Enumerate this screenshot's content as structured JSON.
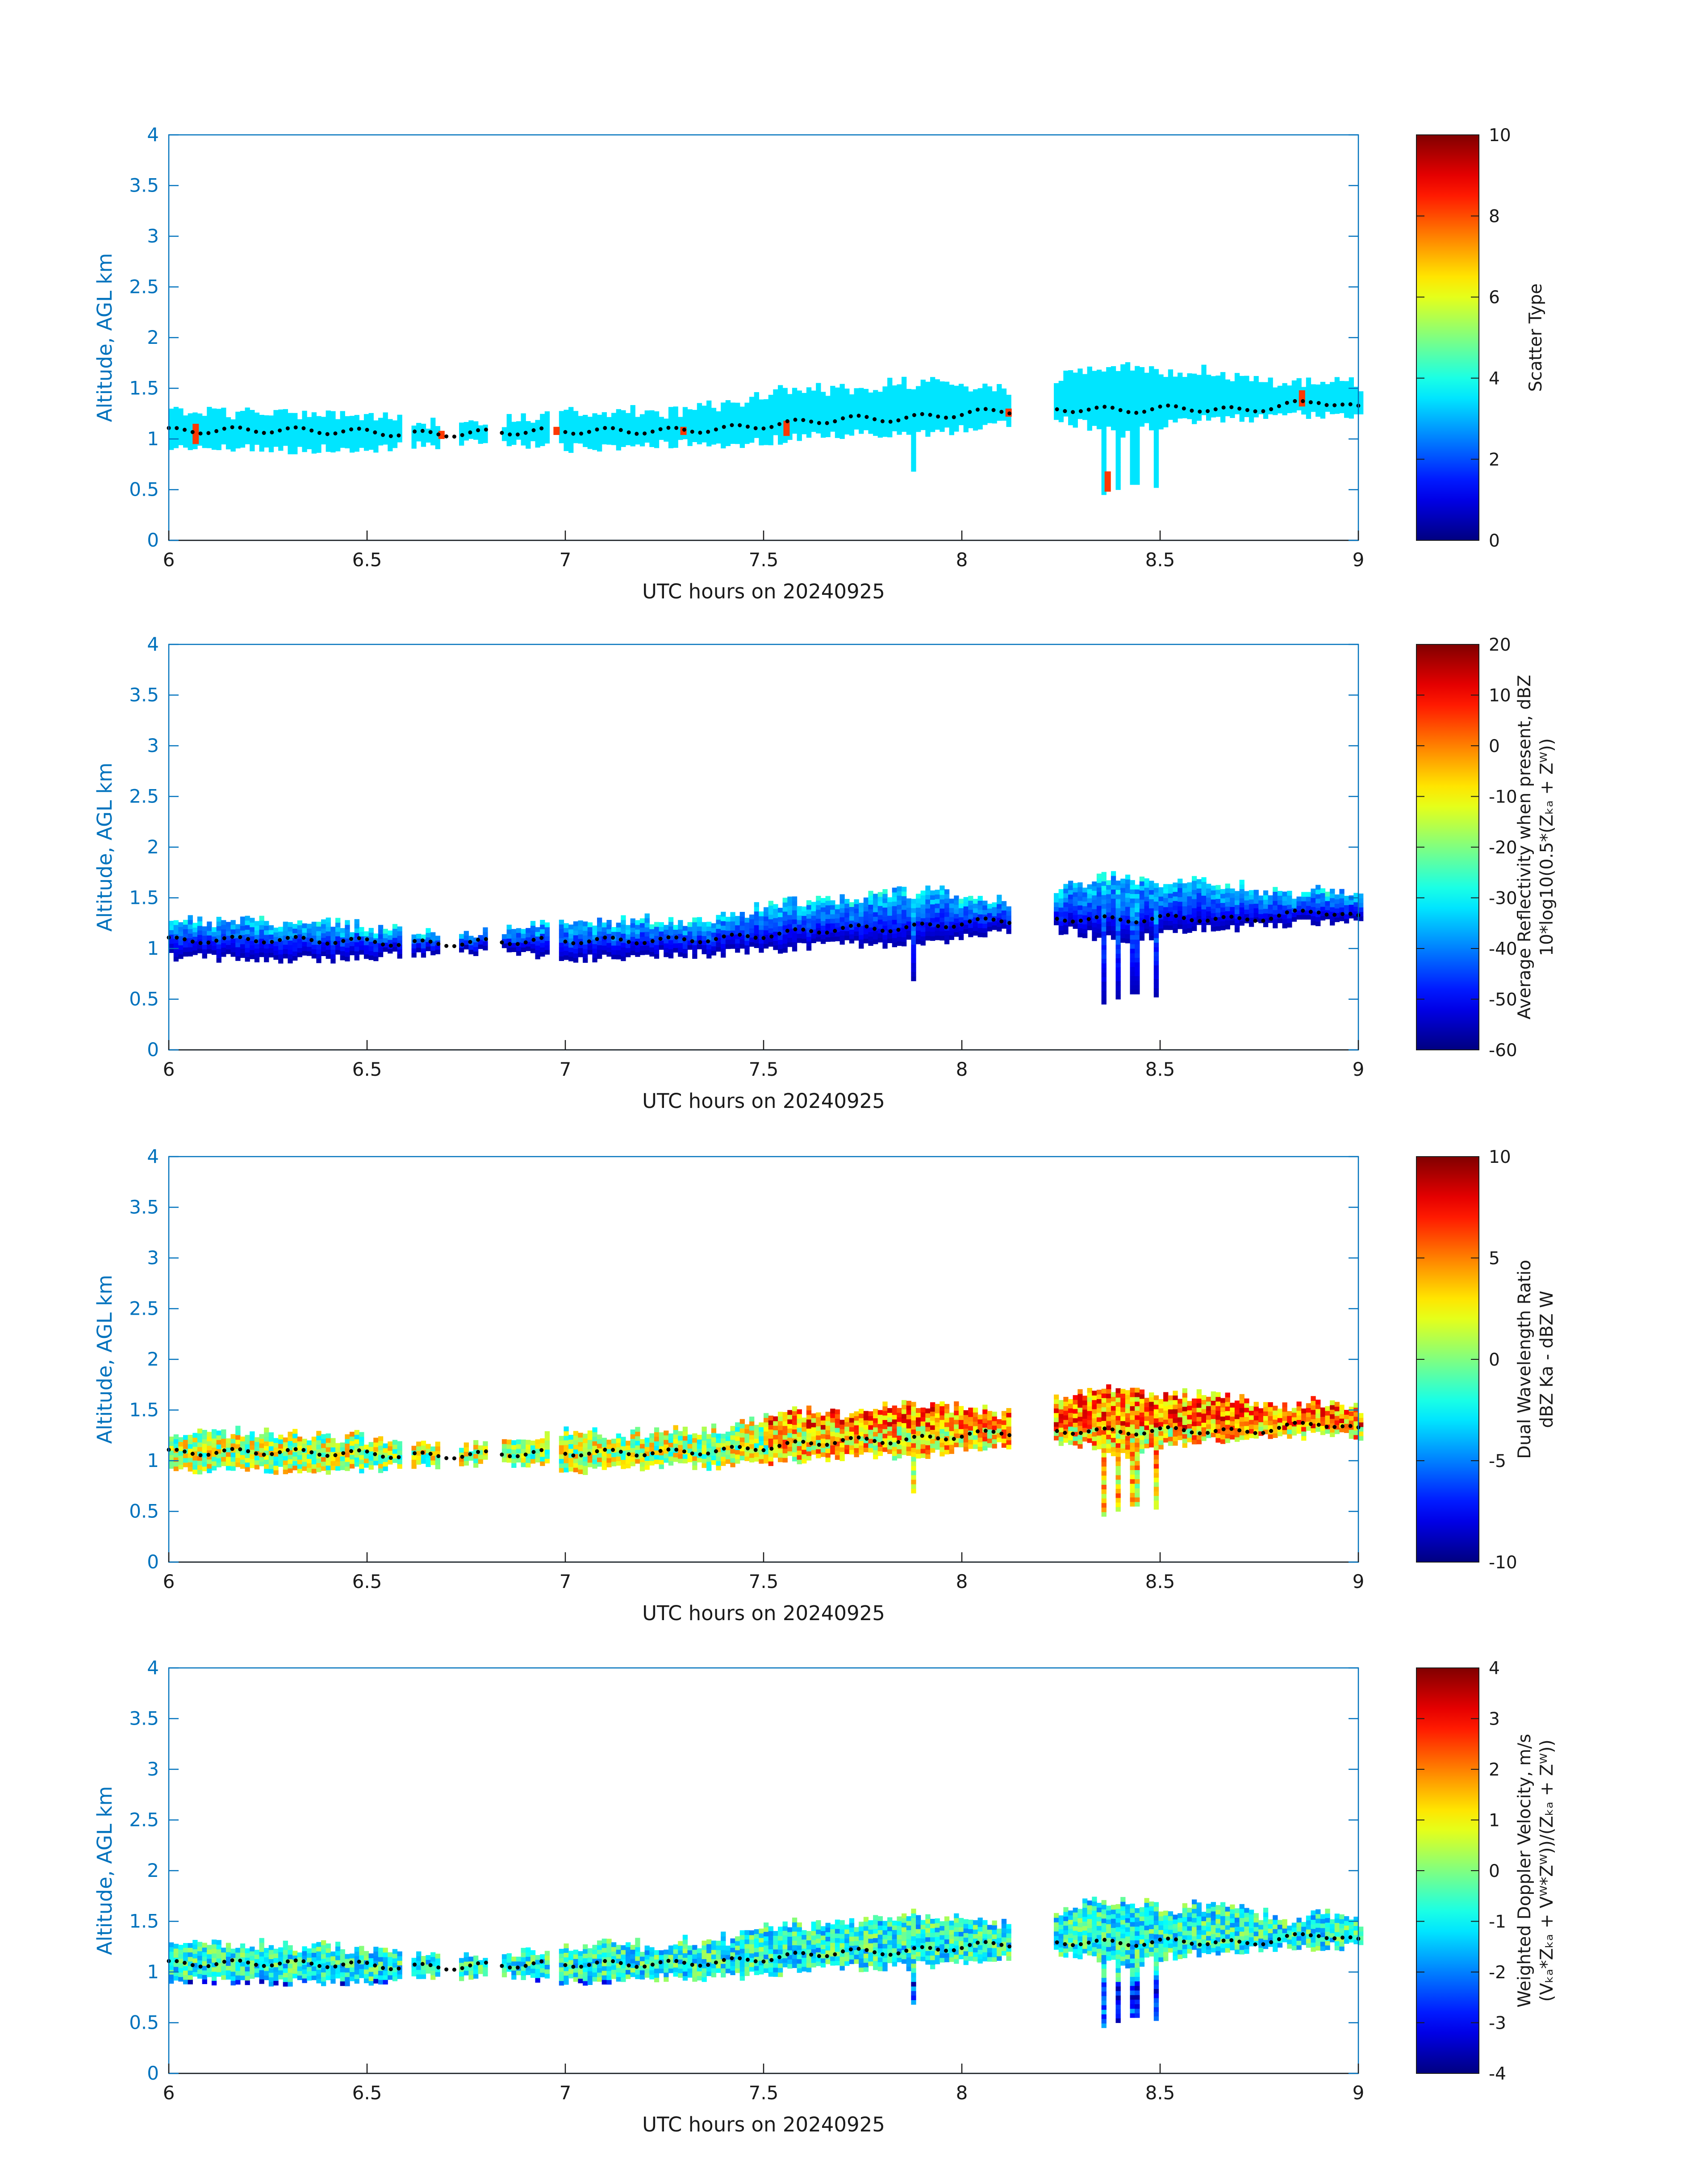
{
  "colors": {
    "axis_left": "#0072bd",
    "text": "#1a1a1a",
    "marker": "#000000",
    "colormap": "jet"
  },
  "chart_data": [
    {
      "type": "heatmap",
      "id": "scatter",
      "xlabel": "UTC hours on 20240925",
      "ylabel": "Altitude, AGL km",
      "xlim": [
        6,
        9
      ],
      "ylim": [
        0,
        4
      ],
      "xticks": [
        "6",
        "6.5",
        "7",
        "7.5",
        "8",
        "8.5",
        "9"
      ],
      "yticks": [
        "0",
        "0.5",
        "1",
        "1.5",
        "2",
        "2.5",
        "3",
        "3.5",
        "4"
      ],
      "colorbar": {
        "label_lines": [
          "Scatter Type"
        ],
        "range": [
          0,
          10
        ],
        "ticks": [
          "0",
          "2",
          "4",
          "6",
          "8",
          "10"
        ]
      },
      "field": "scatter_type",
      "approx_value": 3.5
    },
    {
      "type": "heatmap",
      "id": "reflectivity",
      "xlabel": "UTC hours on 20240925",
      "ylabel": "Altitude, AGL km",
      "xlim": [
        6,
        9
      ],
      "ylim": [
        0,
        4
      ],
      "xticks": [
        "6",
        "6.5",
        "7",
        "7.5",
        "8",
        "8.5",
        "9"
      ],
      "yticks": [
        "0",
        "0.5",
        "1",
        "1.5",
        "2",
        "2.5",
        "3",
        "3.5",
        "4"
      ],
      "colorbar": {
        "label_lines": [
          "Average Reflectivity when present, dBZ",
          "10*log10(0.5*(Zₖₐ + Zᵂ))"
        ],
        "range": [
          -60,
          20
        ],
        "ticks": [
          "-60",
          "-50",
          "-40",
          "-30",
          "-20",
          "-10",
          "0",
          "10",
          "20"
        ]
      },
      "field": "reflectivity_dbz",
      "approx_range": [
        -58,
        -32
      ]
    },
    {
      "type": "heatmap",
      "id": "dwr",
      "xlabel": "UTC hours on 20240925",
      "ylabel": "Altitude, AGL km",
      "xlim": [
        6,
        9
      ],
      "ylim": [
        0,
        4
      ],
      "xticks": [
        "6",
        "6.5",
        "7",
        "7.5",
        "8",
        "8.5",
        "9"
      ],
      "yticks": [
        "0",
        "0.5",
        "1",
        "1.5",
        "2",
        "2.5",
        "3",
        "3.5",
        "4"
      ],
      "colorbar": {
        "label_lines": [
          "Dual Wavelength Ratio",
          "dBZ Ka - dBZ W"
        ],
        "range": [
          -10,
          10
        ],
        "ticks": [
          "-10",
          "-5",
          "0",
          "5",
          "10"
        ]
      },
      "field": "dual_wavelength_ratio_db",
      "approx_range": [
        -8,
        8
      ]
    },
    {
      "type": "heatmap",
      "id": "doppler",
      "xlabel": "UTC hours on 20240925",
      "ylabel": "Altitude, AGL km",
      "xlim": [
        6,
        9
      ],
      "ylim": [
        0,
        4
      ],
      "xticks": [
        "6",
        "6.5",
        "7",
        "7.5",
        "8",
        "8.5",
        "9"
      ],
      "yticks": [
        "0",
        "0.5",
        "1",
        "1.5",
        "2",
        "2.5",
        "3",
        "3.5",
        "4"
      ],
      "colorbar": {
        "label_lines": [
          "Weighted Doppler Velocity, m/s",
          "(Vₖₐ*Zₖₐ + Vᵂ*Zᵂ))/(Zₖₐ + Zᵂ))"
        ],
        "range": [
          -4,
          4
        ],
        "ticks": [
          "-4",
          "-3",
          "-2",
          "-1",
          "0",
          "1",
          "2",
          "3",
          "4"
        ]
      },
      "field": "weighted_doppler_velocity_ms",
      "approx_range": [
        -3.5,
        3.5
      ]
    }
  ],
  "cloud_layer": {
    "x_hours": [
      6.0,
      6.25,
      6.5,
      6.6,
      6.7,
      6.85,
      6.97,
      7.1,
      7.25,
      7.4,
      7.55,
      7.7,
      7.85,
      8.0,
      8.1,
      8.22,
      8.3,
      8.4,
      8.5,
      8.6,
      8.7,
      8.8,
      8.9,
      9.0
    ],
    "top_km": [
      1.25,
      1.25,
      1.2,
      1.15,
      1.15,
      1.15,
      1.25,
      1.25,
      1.25,
      1.3,
      1.45,
      1.45,
      1.55,
      1.5,
      1.45,
      1.55,
      1.65,
      1.7,
      1.6,
      1.65,
      1.6,
      1.5,
      1.55,
      1.5
    ],
    "base_km": [
      0.92,
      0.9,
      0.9,
      0.95,
      0.95,
      0.98,
      0.92,
      0.9,
      0.95,
      0.95,
      1.0,
      1.05,
      1.05,
      1.1,
      1.15,
      1.2,
      1.15,
      1.05,
      1.15,
      1.2,
      1.2,
      1.25,
      1.25,
      1.25
    ],
    "gaps_hours": [
      [
        6.58,
        6.6
      ],
      [
        6.68,
        6.72
      ],
      [
        6.8,
        6.83
      ],
      [
        6.95,
        6.98
      ],
      [
        8.12,
        8.22
      ]
    ],
    "fallstreaks": [
      {
        "x": 7.87,
        "bottom_km": 0.68
      },
      {
        "x": 8.35,
        "bottom_km": 0.45
      },
      {
        "x": 8.39,
        "bottom_km": 0.5
      },
      {
        "x": 8.43,
        "bottom_km": 0.55
      },
      {
        "x": 8.48,
        "bottom_km": 0.52
      }
    ],
    "marker_height_km": [
      1.08,
      1.09,
      1.07,
      1.05,
      1.05,
      1.07,
      1.08,
      1.08,
      1.08,
      1.1,
      1.15,
      1.2,
      1.2,
      1.25,
      1.28,
      1.28,
      1.3,
      1.28,
      1.3,
      1.3,
      1.28,
      1.32,
      1.38,
      1.3
    ]
  }
}
